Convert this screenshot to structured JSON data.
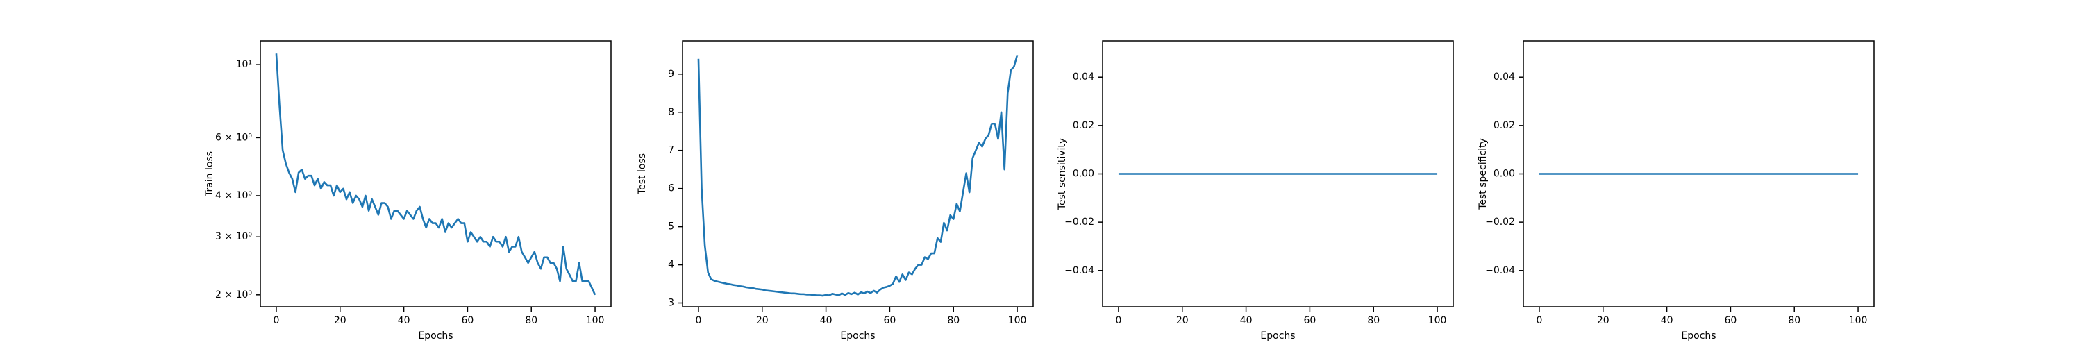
{
  "chart_data": [
    {
      "type": "line",
      "xlabel": "Epochs",
      "ylabel": "Train loss",
      "yscale": "log",
      "color": "#1f77b4",
      "x": [
        0,
        1,
        2,
        3,
        4,
        5,
        6,
        7,
        8,
        9,
        10,
        11,
        12,
        13,
        14,
        15,
        16,
        17,
        18,
        19,
        20,
        21,
        22,
        23,
        24,
        25,
        26,
        27,
        28,
        29,
        30,
        31,
        32,
        33,
        34,
        35,
        36,
        37,
        38,
        39,
        40,
        41,
        42,
        43,
        44,
        45,
        46,
        47,
        48,
        49,
        50,
        51,
        52,
        53,
        54,
        55,
        56,
        57,
        58,
        59,
        60,
        61,
        62,
        63,
        64,
        65,
        66,
        67,
        68,
        69,
        70,
        71,
        72,
        73,
        74,
        75,
        76,
        77,
        78,
        79,
        80,
        81,
        82,
        83,
        84,
        85,
        86,
        87,
        88,
        89,
        90,
        91,
        92,
        93,
        94,
        95,
        96,
        97,
        98,
        99,
        100
      ],
      "values": [
        10.8,
        7.5,
        5.5,
        5.0,
        4.7,
        4.5,
        4.1,
        4.7,
        4.8,
        4.5,
        4.6,
        4.6,
        4.3,
        4.5,
        4.2,
        4.4,
        4.3,
        4.3,
        4.0,
        4.3,
        4.1,
        4.2,
        3.9,
        4.1,
        3.8,
        4.0,
        3.9,
        3.7,
        4.0,
        3.6,
        3.9,
        3.7,
        3.5,
        3.8,
        3.8,
        3.7,
        3.4,
        3.6,
        3.6,
        3.5,
        3.4,
        3.6,
        3.5,
        3.4,
        3.6,
        3.7,
        3.4,
        3.2,
        3.4,
        3.3,
        3.3,
        3.2,
        3.4,
        3.1,
        3.3,
        3.2,
        3.3,
        3.4,
        3.3,
        3.3,
        2.9,
        3.1,
        3.0,
        2.9,
        3.0,
        2.9,
        2.9,
        2.8,
        3.0,
        2.9,
        2.9,
        2.8,
        3.0,
        2.7,
        2.8,
        2.8,
        3.0,
        2.7,
        2.6,
        2.5,
        2.6,
        2.7,
        2.5,
        2.4,
        2.6,
        2.6,
        2.5,
        2.5,
        2.4,
        2.2,
        2.8,
        2.4,
        2.3,
        2.2,
        2.2,
        2.5,
        2.2,
        2.2,
        2.2,
        2.1,
        2.0
      ],
      "xlim": [
        -5,
        105
      ],
      "xticks": [
        0,
        20,
        40,
        60,
        80,
        100
      ],
      "ylim": [
        1.84,
        11.8
      ],
      "yticks": [
        {
          "value": 2,
          "label": "2 × 10⁰"
        },
        {
          "value": 3,
          "label": "3 × 10⁰"
        },
        {
          "value": 4,
          "label": "4 × 10⁰"
        },
        {
          "value": 6,
          "label": "6 × 10⁰"
        },
        {
          "value": 10,
          "label": "10¹"
        }
      ]
    },
    {
      "type": "line",
      "xlabel": "Epochs",
      "ylabel": "Test loss",
      "color": "#1f77b4",
      "x": [
        0,
        1,
        2,
        3,
        4,
        5,
        6,
        7,
        8,
        9,
        10,
        11,
        12,
        13,
        14,
        15,
        16,
        17,
        18,
        19,
        20,
        21,
        22,
        23,
        24,
        25,
        26,
        27,
        28,
        29,
        30,
        31,
        32,
        33,
        34,
        35,
        36,
        37,
        38,
        39,
        40,
        41,
        42,
        43,
        44,
        45,
        46,
        47,
        48,
        49,
        50,
        51,
        52,
        53,
        54,
        55,
        56,
        57,
        58,
        59,
        60,
        61,
        62,
        63,
        64,
        65,
        66,
        67,
        68,
        69,
        70,
        71,
        72,
        73,
        74,
        75,
        76,
        77,
        78,
        79,
        80,
        81,
        82,
        83,
        84,
        85,
        86,
        87,
        88,
        89,
        90,
        91,
        92,
        93,
        94,
        95,
        96,
        97,
        98,
        99,
        100
      ],
      "values": [
        9.4,
        6.0,
        4.5,
        3.8,
        3.62,
        3.58,
        3.56,
        3.54,
        3.52,
        3.5,
        3.49,
        3.47,
        3.46,
        3.44,
        3.43,
        3.41,
        3.4,
        3.39,
        3.37,
        3.36,
        3.35,
        3.33,
        3.32,
        3.31,
        3.3,
        3.29,
        3.28,
        3.27,
        3.26,
        3.25,
        3.25,
        3.24,
        3.23,
        3.23,
        3.22,
        3.22,
        3.21,
        3.2,
        3.2,
        3.19,
        3.21,
        3.2,
        3.24,
        3.22,
        3.2,
        3.25,
        3.21,
        3.26,
        3.23,
        3.27,
        3.22,
        3.28,
        3.25,
        3.3,
        3.26,
        3.32,
        3.27,
        3.35,
        3.4,
        3.42,
        3.45,
        3.5,
        3.7,
        3.55,
        3.75,
        3.6,
        3.8,
        3.75,
        3.9,
        4.0,
        4.0,
        4.2,
        4.15,
        4.3,
        4.3,
        4.7,
        4.6,
        5.1,
        4.9,
        5.3,
        5.2,
        5.6,
        5.4,
        5.9,
        6.4,
        5.9,
        6.8,
        7.0,
        7.2,
        7.1,
        7.3,
        7.4,
        7.7,
        7.7,
        7.3,
        8.0,
        6.5,
        8.5,
        9.1,
        9.2,
        9.5
      ],
      "xlim": [
        -5,
        105
      ],
      "xticks": [
        0,
        20,
        40,
        60,
        80,
        100
      ],
      "ylim": [
        2.9,
        9.87
      ],
      "yticks": [
        3,
        4,
        5,
        6,
        7,
        8,
        9
      ]
    },
    {
      "type": "line",
      "xlabel": "Epochs",
      "ylabel": "Test sensitivity",
      "color": "#1f77b4",
      "x": [
        0,
        1,
        2,
        3,
        4,
        5,
        6,
        7,
        8,
        9,
        10,
        11,
        12,
        13,
        14,
        15,
        16,
        17,
        18,
        19,
        20,
        21,
        22,
        23,
        24,
        25,
        26,
        27,
        28,
        29,
        30,
        31,
        32,
        33,
        34,
        35,
        36,
        37,
        38,
        39,
        40,
        41,
        42,
        43,
        44,
        45,
        46,
        47,
        48,
        49,
        50,
        51,
        52,
        53,
        54,
        55,
        56,
        57,
        58,
        59,
        60,
        61,
        62,
        63,
        64,
        65,
        66,
        67,
        68,
        69,
        70,
        71,
        72,
        73,
        74,
        75,
        76,
        77,
        78,
        79,
        80,
        81,
        82,
        83,
        84,
        85,
        86,
        87,
        88,
        89,
        90,
        91,
        92,
        93,
        94,
        95,
        96,
        97,
        98,
        99,
        100
      ],
      "values": [
        0,
        0,
        0,
        0,
        0,
        0,
        0,
        0,
        0,
        0,
        0,
        0,
        0,
        0,
        0,
        0,
        0,
        0,
        0,
        0,
        0,
        0,
        0,
        0,
        0,
        0,
        0,
        0,
        0,
        0,
        0,
        0,
        0,
        0,
        0,
        0,
        0,
        0,
        0,
        0,
        0,
        0,
        0,
        0,
        0,
        0,
        0,
        0,
        0,
        0,
        0,
        0,
        0,
        0,
        0,
        0,
        0,
        0,
        0,
        0,
        0,
        0,
        0,
        0,
        0,
        0,
        0,
        0,
        0,
        0,
        0,
        0,
        0,
        0,
        0,
        0,
        0,
        0,
        0,
        0,
        0,
        0,
        0,
        0,
        0,
        0,
        0,
        0,
        0,
        0,
        0,
        0,
        0,
        0,
        0,
        0,
        0,
        0,
        0,
        0,
        0
      ],
      "xlim": [
        -5,
        105
      ],
      "xticks": [
        0,
        20,
        40,
        60,
        80,
        100
      ],
      "ylim": [
        -0.055,
        0.055
      ],
      "yticks": [
        {
          "value": -0.04,
          "label": "−0.04"
        },
        {
          "value": -0.02,
          "label": "−0.02"
        },
        {
          "value": 0,
          "label": "0.00"
        },
        {
          "value": 0.02,
          "label": "0.02"
        },
        {
          "value": 0.04,
          "label": "0.04"
        }
      ]
    },
    {
      "type": "line",
      "xlabel": "Epochs",
      "ylabel": "Test specificity",
      "color": "#1f77b4",
      "x": [
        0,
        1,
        2,
        3,
        4,
        5,
        6,
        7,
        8,
        9,
        10,
        11,
        12,
        13,
        14,
        15,
        16,
        17,
        18,
        19,
        20,
        21,
        22,
        23,
        24,
        25,
        26,
        27,
        28,
        29,
        30,
        31,
        32,
        33,
        34,
        35,
        36,
        37,
        38,
        39,
        40,
        41,
        42,
        43,
        44,
        45,
        46,
        47,
        48,
        49,
        50,
        51,
        52,
        53,
        54,
        55,
        56,
        57,
        58,
        59,
        60,
        61,
        62,
        63,
        64,
        65,
        66,
        67,
        68,
        69,
        70,
        71,
        72,
        73,
        74,
        75,
        76,
        77,
        78,
        79,
        80,
        81,
        82,
        83,
        84,
        85,
        86,
        87,
        88,
        89,
        90,
        91,
        92,
        93,
        94,
        95,
        96,
        97,
        98,
        99,
        100
      ],
      "values": [
        0,
        0,
        0,
        0,
        0,
        0,
        0,
        0,
        0,
        0,
        0,
        0,
        0,
        0,
        0,
        0,
        0,
        0,
        0,
        0,
        0,
        0,
        0,
        0,
        0,
        0,
        0,
        0,
        0,
        0,
        0,
        0,
        0,
        0,
        0,
        0,
        0,
        0,
        0,
        0,
        0,
        0,
        0,
        0,
        0,
        0,
        0,
        0,
        0,
        0,
        0,
        0,
        0,
        0,
        0,
        0,
        0,
        0,
        0,
        0,
        0,
        0,
        0,
        0,
        0,
        0,
        0,
        0,
        0,
        0,
        0,
        0,
        0,
        0,
        0,
        0,
        0,
        0,
        0,
        0,
        0,
        0,
        0,
        0,
        0,
        0,
        0,
        0,
        0,
        0,
        0,
        0,
        0,
        0,
        0,
        0,
        0,
        0,
        0,
        0,
        0
      ],
      "xlim": [
        -5,
        105
      ],
      "xticks": [
        0,
        20,
        40,
        60,
        80,
        100
      ],
      "ylim": [
        -0.055,
        0.055
      ],
      "yticks": [
        {
          "value": -0.04,
          "label": "−0.04"
        },
        {
          "value": -0.02,
          "label": "−0.02"
        },
        {
          "value": 0,
          "label": "0.00"
        },
        {
          "value": 0.02,
          "label": "0.02"
        },
        {
          "value": 0.04,
          "label": "0.04"
        }
      ]
    }
  ]
}
